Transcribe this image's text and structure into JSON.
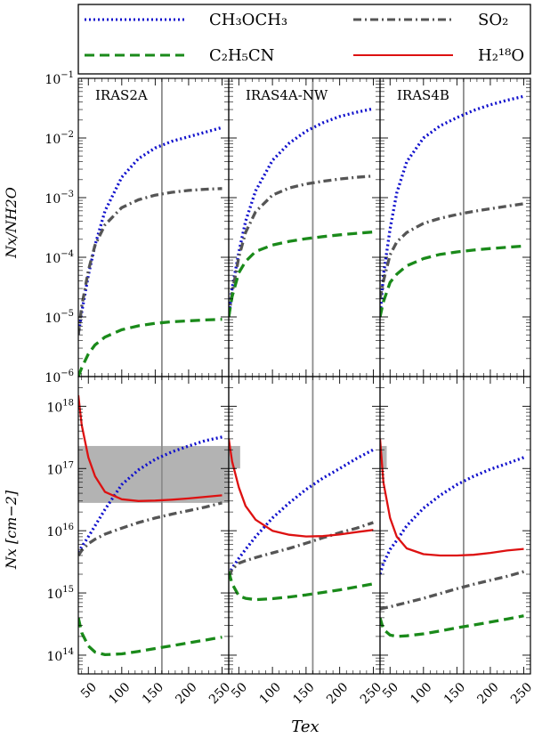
{
  "legend": {
    "items": [
      {
        "series": "CH3OCH3",
        "label": "CH₃OCH₃",
        "color": "#1010cc",
        "dash": "2,3",
        "width": 3
      },
      {
        "series": "SO2",
        "label": "SO₂",
        "color": "#555555",
        "dash": "9,4,2,4",
        "width": 3
      },
      {
        "series": "C2H5CN",
        "label": "C₂H₅CN",
        "color": "#1a8a1a",
        "dash": "11,6",
        "width": 3
      },
      {
        "series": "H218O",
        "label": "H₂¹⁸O",
        "color": "#dd1111",
        "dash": "",
        "width": 2
      }
    ]
  },
  "chart_data": {
    "type": "line",
    "xlabel": "Tex",
    "ylabel_top": "Nx/NH2O",
    "ylabel_bottom": "Nx [cm−2]",
    "x_ticks": [
      50,
      100,
      150,
      200,
      250
    ],
    "xlim": [
      35,
      260
    ],
    "top_ylim": [
      1e-06,
      0.1
    ],
    "top_yticks": [
      {
        "v": 1e-06,
        "label": "10−6"
      },
      {
        "v": 1e-05,
        "label": "10−5"
      },
      {
        "v": 0.0001,
        "label": "10−4"
      },
      {
        "v": 0.001,
        "label": "10−3"
      },
      {
        "v": 0.01,
        "label": "10−2"
      },
      {
        "v": 0.1,
        "label": "10−1"
      }
    ],
    "bottom_ylim": [
      50000000000000.0,
      3e+18
    ],
    "bottom_yticks": [
      {
        "v": 100000000000000.0,
        "label": "1014"
      },
      {
        "v": 1000000000000000.0,
        "label": "1015"
      },
      {
        "v": 1e+16,
        "label": "1016"
      },
      {
        "v": 1e+17,
        "label": "1017"
      },
      {
        "v": 1e+18,
        "label": "1018"
      }
    ],
    "x": [
      35,
      40,
      50,
      60,
      75,
      100,
      125,
      150,
      175,
      200,
      225,
      250
    ],
    "panels": [
      {
        "name": "IRAS2A",
        "vline": 160,
        "shaded": {
          "x": [
            35,
            260
          ],
          "y": [
            2.8e+16,
            2.3e+17
          ]
        },
        "ratio": {
          "CH3OCH3": [
            5e-06,
            1.2e-05,
            5e-05,
            0.00016,
            0.0006,
            0.0022,
            0.0045,
            0.0068,
            0.0088,
            0.0105,
            0.0125,
            0.015
          ],
          "SO2": [
            5e-06,
            1.5e-05,
            6e-05,
            0.00016,
            0.00035,
            0.00068,
            0.00092,
            0.0011,
            0.00123,
            0.00132,
            0.00138,
            0.00142
          ],
          "C2H5CN": [
            1e-06,
            1.4e-06,
            2.4e-06,
            3.4e-06,
            4.6e-06,
            6.1e-06,
            7.1e-06,
            7.8e-06,
            8.3e-06,
            8.6e-06,
            8.9e-06,
            9.1e-06
          ]
        },
        "column": {
          "CH3OCH3": [
            4500000000000000.0,
            5500000000000000.0,
            8000000000000000.0,
            1.2e+16,
            2.2e+16,
            5.5e+16,
            9.5e+16,
            1.4e+17,
            1.85e+17,
            2.3e+17,
            2.8e+17,
            3.2e+17
          ],
          "SO2": [
            4000000000000000.0,
            4800000000000000.0,
            6200000000000000.0,
            7300000000000000.0,
            8800000000000000.0,
            1.1e+16,
            1.35e+16,
            1.6e+16,
            1.85e+16,
            2.1e+16,
            2.4e+16,
            2.8e+16
          ],
          "C2H5CN": [
            400000000000000.0,
            230000000000000.0,
            140000000000000.0,
            112000000000000.0,
            102000000000000.0,
            105000000000000.0,
            115000000000000.0,
            128000000000000.0,
            142000000000000.0,
            158000000000000.0,
            175000000000000.0,
            195000000000000.0
          ],
          "H218O": [
            1.5e+18,
            5e+17,
            1.5e+17,
            7.5e+16,
            4.2e+16,
            3.2e+16,
            3e+16,
            3.05e+16,
            3.15e+16,
            3.3e+16,
            3.5e+16,
            3.7e+16
          ]
        }
      },
      {
        "name": "IRAS4A-NW",
        "vline": 160,
        "shaded": {
          "x": [
            35,
            52
          ],
          "y": [
            1e+17,
            2.3e+17
          ]
        },
        "ratio": {
          "CH3OCH3": [
            1e-05,
            3e-05,
            0.00012,
            0.0004,
            0.0013,
            0.0042,
            0.0082,
            0.013,
            0.018,
            0.023,
            0.027,
            0.031
          ],
          "SO2": [
            1e-05,
            2.5e-05,
            0.0001,
            0.00026,
            0.00058,
            0.0011,
            0.00145,
            0.0017,
            0.00188,
            0.00205,
            0.0022,
            0.0023
          ],
          "C2H5CN": [
            1e-05,
            2.2e-05,
            5.5e-05,
            8.5e-05,
            0.000125,
            0.00016,
            0.000185,
            0.000205,
            0.000222,
            0.000238,
            0.000252,
            0.000265
          ]
        },
        "column": {
          "CH3OCH3": [
            2000000000000000.0,
            2500000000000000.0,
            3600000000000000.0,
            5000000000000000.0,
            8000000000000000.0,
            1.6e+16,
            2.8e+16,
            4.6e+16,
            7e+16,
            1e+17,
            1.45e+17,
            2e+17
          ],
          "SO2": [
            1800000000000000.0,
            2400000000000000.0,
            3000000000000000.0,
            3300000000000000.0,
            3700000000000000.0,
            4400000000000000.0,
            5200000000000000.0,
            6300000000000000.0,
            7700000000000000.0,
            9300000000000000.0,
            1.1e+16,
            1.35e+16
          ],
          "C2H5CN": [
            2200000000000000.0,
            1400000000000000.0,
            900000000000000.0,
            820000000000000.0,
            780000000000000.0,
            810000000000000.0,
            860000000000000.0,
            930000000000000.0,
            1020000000000000.0,
            1120000000000000.0,
            1250000000000000.0,
            1400000000000000.0
          ],
          "H218O": [
            3e+17,
            1.3e+17,
            5e+16,
            2.5e+16,
            1.5e+16,
            1e+16,
            8600000000000000.0,
            8100000000000000.0,
            8200000000000000.0,
            8700000000000000.0,
            9500000000000000.0,
            1.03e+16
          ]
        }
      },
      {
        "name": "IRAS4B",
        "vline": 160,
        "shaded": {
          "x": [
            35,
            45
          ],
          "y": [
            1e+17,
            2.3e+17
          ]
        },
        "ratio": {
          "CH3OCH3": [
            1e-05,
            5e-05,
            0.0003,
            0.0012,
            0.004,
            0.01,
            0.016,
            0.022,
            0.029,
            0.036,
            0.043,
            0.05
          ],
          "SO2": [
            2e-05,
            4e-05,
            0.00011,
            0.00018,
            0.00026,
            0.00037,
            0.00045,
            0.00052,
            0.00059,
            0.00065,
            0.00072,
            0.00079
          ],
          "C2H5CN": [
            1e-05,
            1.8e-05,
            3.8e-05,
            5.2e-05,
            7.2e-05,
            9.5e-05,
            0.000112,
            0.000123,
            0.000132,
            0.00014,
            0.000147,
            0.000154
          ]
        },
        "column": {
          "CH3OCH3": [
            2000000000000000.0,
            3000000000000000.0,
            5000000000000000.0,
            7000000000000000.0,
            1.2e+16,
            2.3e+16,
            3.7e+16,
            5.5e+16,
            7.5e+16,
            9.7e+16,
            1.2e+17,
            1.5e+17
          ],
          "SO2": [
            550000000000000.0,
            570000000000000.0,
            600000000000000.0,
            640000000000000.0,
            700000000000000.0,
            820000000000000.0,
            980000000000000.0,
            1170000000000000.0,
            1380000000000000.0,
            1600000000000000.0,
            1850000000000000.0,
            2200000000000000.0
          ],
          "C2H5CN": [
            400000000000000.0,
            260000000000000.0,
            210000000000000.0,
            200000000000000.0,
            205000000000000.0,
            220000000000000.0,
            245000000000000.0,
            275000000000000.0,
            305000000000000.0,
            340000000000000.0,
            380000000000000.0,
            430000000000000.0
          ],
          "H218O": [
            3e+17,
            6e+16,
            1.6e+16,
            8000000000000000.0,
            5200000000000000.0,
            4200000000000000.0,
            4000000000000000.0,
            4000000000000000.0,
            4100000000000000.0,
            4400000000000000.0,
            4800000000000000.0,
            5100000000000000.0
          ]
        }
      }
    ]
  }
}
